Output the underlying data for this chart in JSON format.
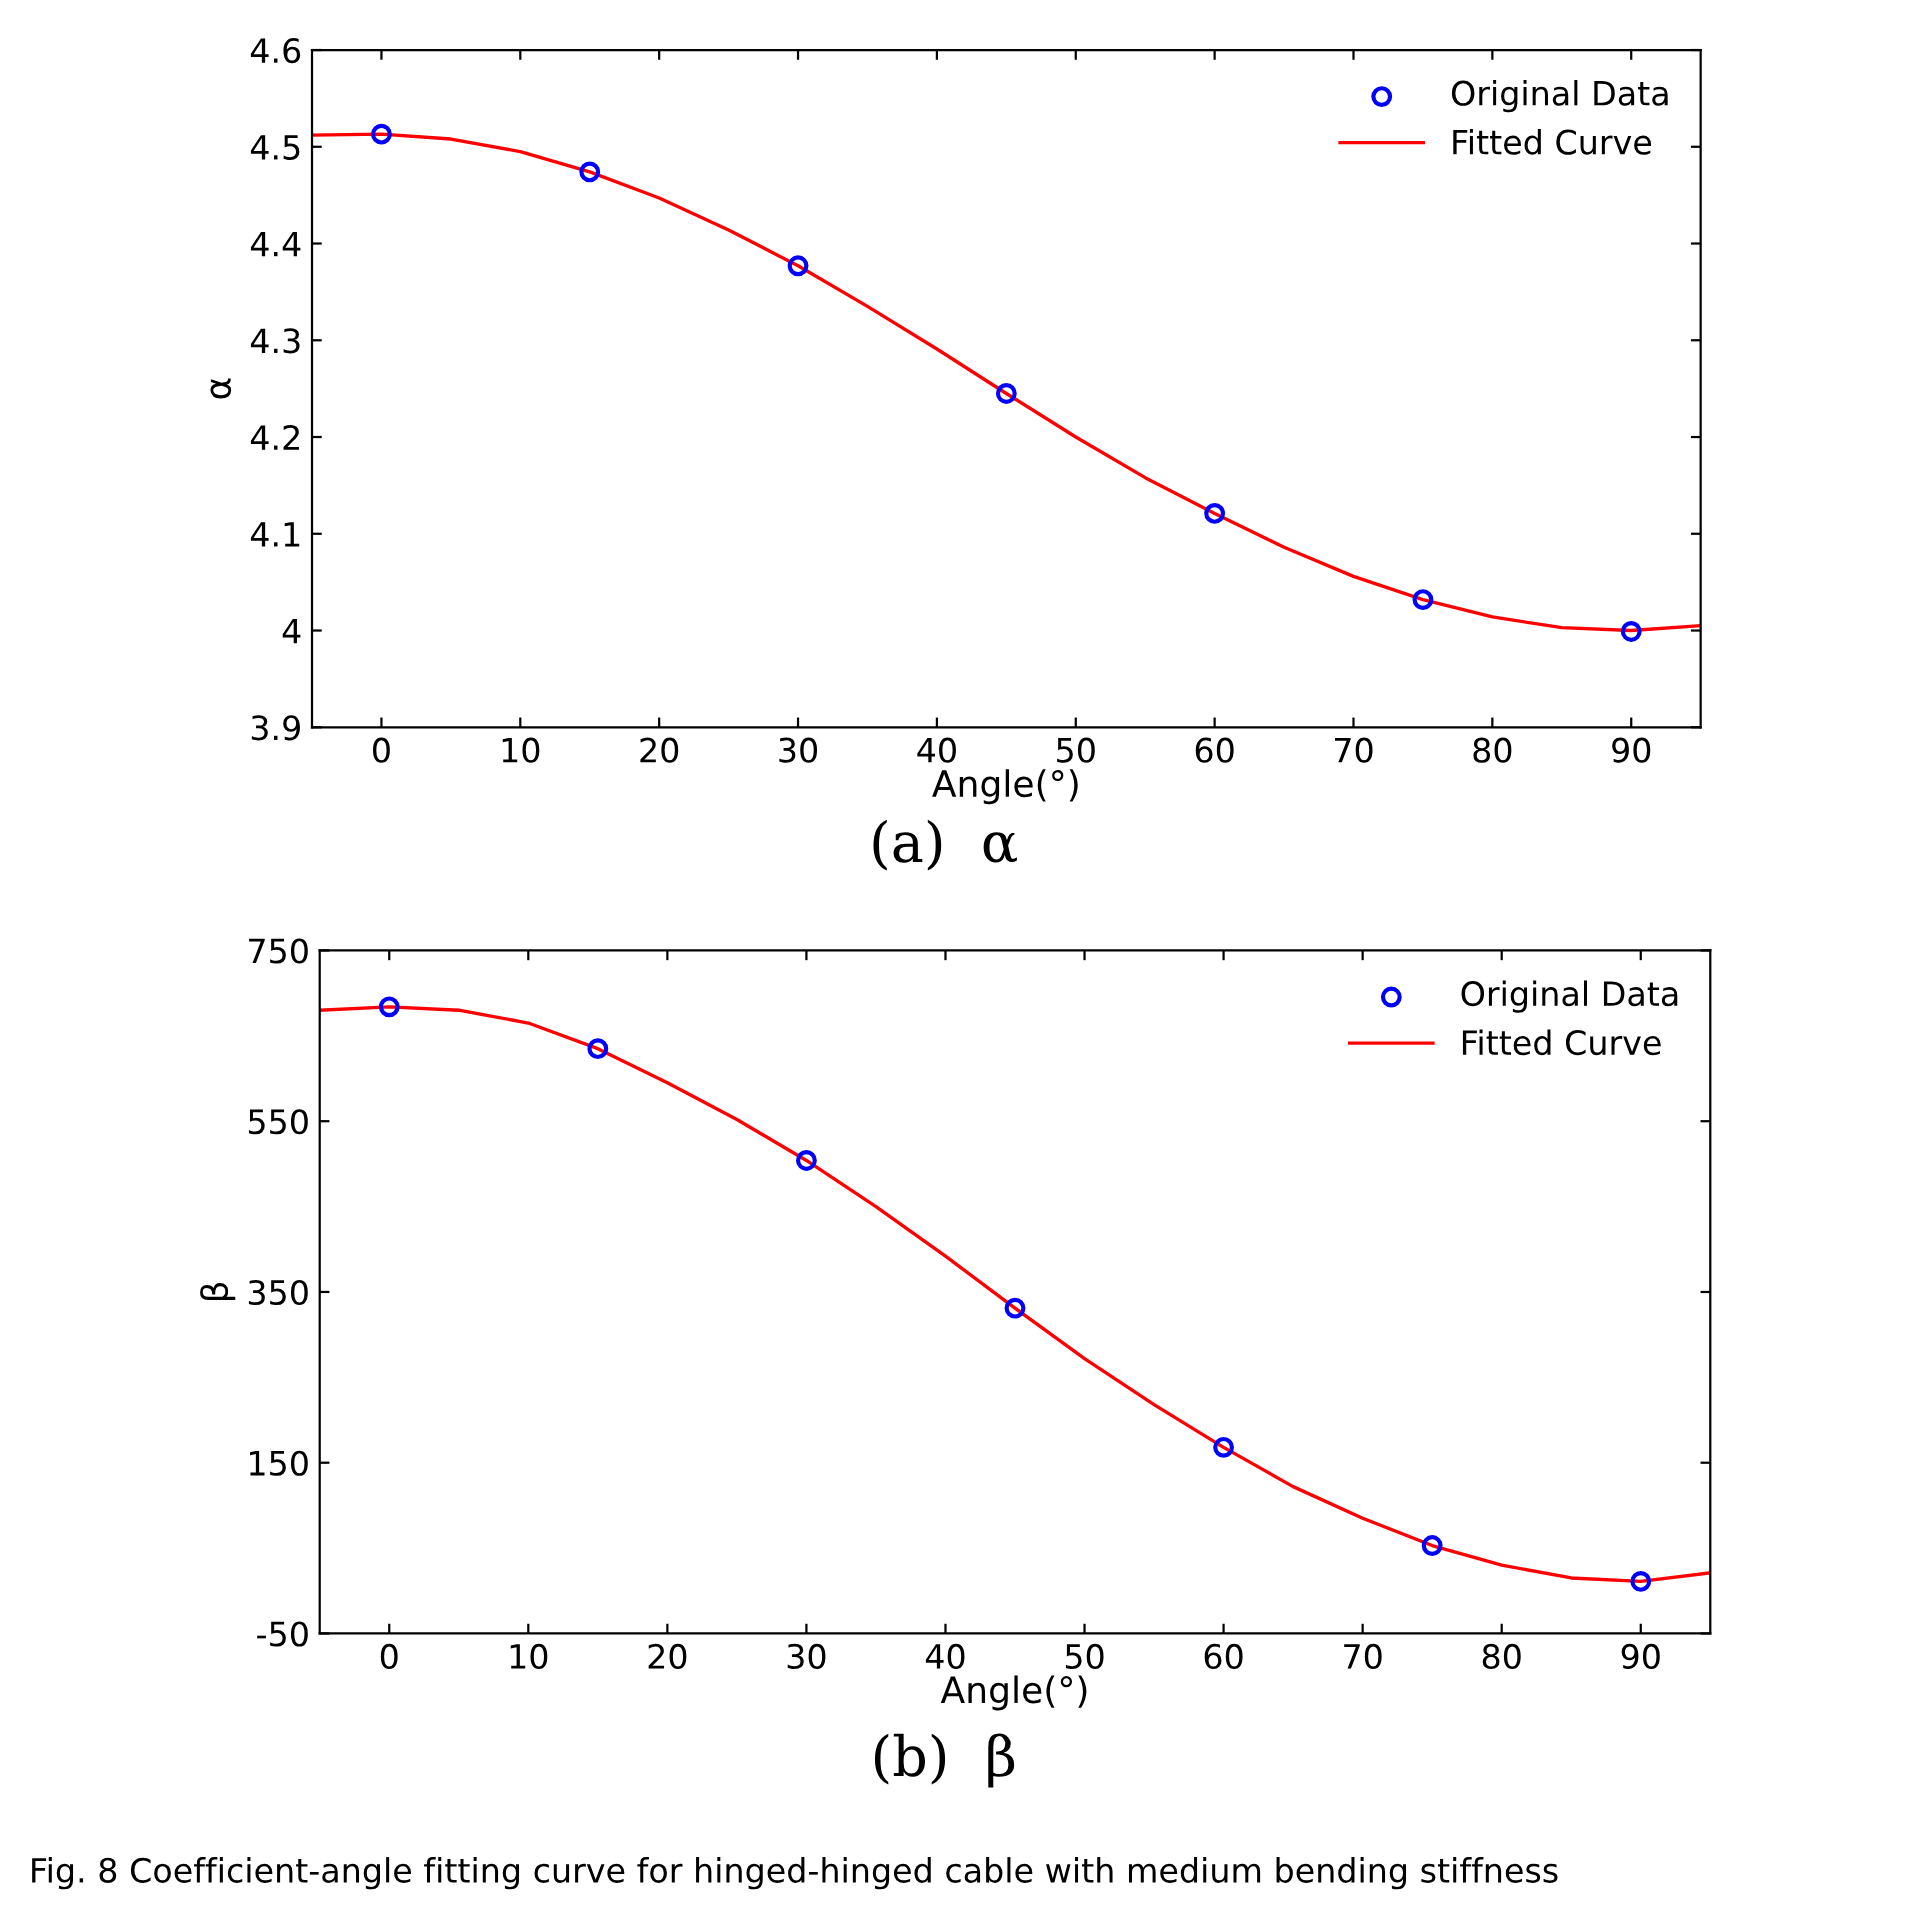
{
  "chart_data": [
    {
      "type": "scatter",
      "xlabel": "Angle(°)",
      "ylabel": "α",
      "xlim": [
        -5,
        95
      ],
      "ylim": [
        3.9,
        4.6
      ],
      "xticks": [
        0,
        10,
        20,
        30,
        40,
        50,
        60,
        70,
        80,
        90
      ],
      "yticks": [
        3.9,
        4,
        4.1,
        4.2,
        4.3,
        4.4,
        4.5,
        4.6
      ],
      "grid": false,
      "legend": "top right",
      "annotations": [
        "(a)  α"
      ],
      "series": [
        {
          "name": "Original Data",
          "marker": "circle",
          "color": "#0000ff",
          "x": [
            0,
            15,
            30,
            45,
            60,
            75,
            90
          ],
          "values": [
            4.513,
            4.474,
            4.377,
            4.245,
            4.121,
            4.032,
            3.999
          ]
        },
        {
          "name": "Fitted Curve",
          "type": "line",
          "color": "#ff0000",
          "x": [
            -5,
            0,
            5,
            10,
            15,
            20,
            25,
            30,
            35,
            40,
            45,
            50,
            55,
            60,
            65,
            70,
            75,
            80,
            85,
            90,
            95
          ],
          "values": [
            4.512,
            4.513,
            4.508,
            4.495,
            4.474,
            4.447,
            4.414,
            4.377,
            4.335,
            4.291,
            4.245,
            4.2,
            4.158,
            4.121,
            4.086,
            4.056,
            4.032,
            4.014,
            4.003,
            4.0,
            4.005
          ]
        }
      ]
    },
    {
      "type": "scatter",
      "xlabel": "Angle(°)",
      "ylabel": "β",
      "xlim": [
        -5,
        95
      ],
      "ylim": [
        -50,
        750
      ],
      "xticks": [
        0,
        10,
        20,
        30,
        40,
        50,
        60,
        70,
        80,
        90
      ],
      "yticks": [
        -50,
        150,
        350,
        550,
        750
      ],
      "grid": false,
      "legend": "top right",
      "annotations": [
        "(b)  β",
        "Fig. 8 Coefficient-angle fitting curve for hinged-hinged cable with medium bending stiffness"
      ],
      "series": [
        {
          "name": "Original Data",
          "marker": "circle",
          "color": "#0000ff",
          "x": [
            0,
            15,
            30,
            45,
            60,
            75,
            90
          ],
          "values": [
            684,
            635,
            504,
            331,
            168,
            53,
            11
          ]
        },
        {
          "name": "Fitted Curve",
          "type": "line",
          "color": "#ff0000",
          "x": [
            -5,
            0,
            5,
            10,
            15,
            20,
            25,
            30,
            35,
            40,
            45,
            50,
            55,
            60,
            65,
            70,
            75,
            80,
            85,
            90,
            95
          ],
          "values": [
            680,
            684,
            680,
            665,
            635,
            595,
            552,
            504,
            450,
            392,
            331,
            272,
            218,
            168,
            122,
            85,
            53,
            30,
            15,
            11,
            21
          ]
        }
      ]
    }
  ]
}
